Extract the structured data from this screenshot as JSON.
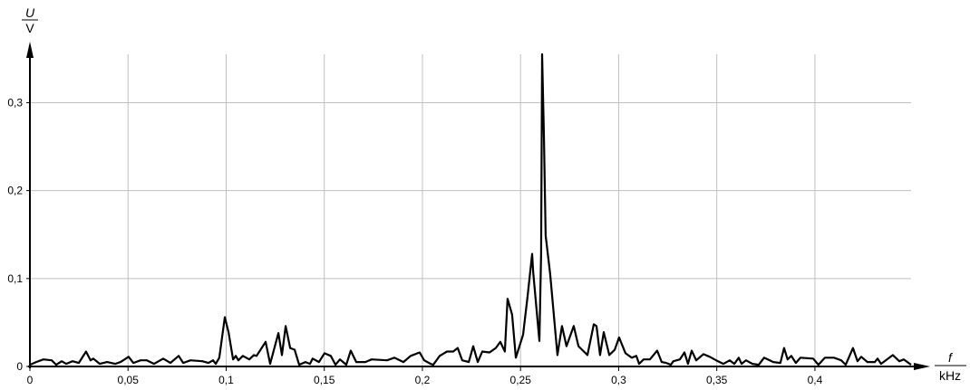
{
  "chart_data": {
    "type": "line",
    "title": "",
    "ylabel": {
      "symbol": "U",
      "unit": "V"
    },
    "xlabel": {
      "symbol": "f",
      "unit": "kHz"
    },
    "xlim": [
      0,
      0.449
    ],
    "ylim": [
      0,
      0.355
    ],
    "grid": true,
    "line_color": "#000000",
    "grid_color": "#c0c0c0",
    "x_ticks": [
      0,
      0.05,
      0.1,
      0.15,
      0.2,
      0.25,
      0.3,
      0.35,
      0.4
    ],
    "x_tick_labels": [
      "0",
      "0,05",
      "0,1",
      "0,15",
      "0,2",
      "0,25",
      "0,3",
      "0,35",
      "0,4"
    ],
    "y_ticks": [
      0,
      0.1,
      0.2,
      0.3
    ],
    "y_tick_labels": [
      "0",
      "0,1",
      "0,2",
      "0,3"
    ],
    "series": [
      {
        "x": [
          0,
          0.0032,
          0.0069,
          0.0111,
          0.0134,
          0.0162,
          0.0185,
          0.0217,
          0.0249,
          0.0286,
          0.0309,
          0.0323,
          0.0356,
          0.0393,
          0.0434,
          0.0462,
          0.0503,
          0.0527,
          0.0564,
          0.0596,
          0.0633,
          0.0679,
          0.0716,
          0.0758,
          0.0781,
          0.0818,
          0.0878,
          0.091,
          0.0933,
          0.0947,
          0.0965,
          0.0993,
          0.1012,
          0.1035,
          0.1049,
          0.1062,
          0.1085,
          0.1118,
          0.1141,
          0.1155,
          0.1201,
          0.1224,
          0.1266,
          0.1284,
          0.1303,
          0.1326,
          0.1349,
          0.1372,
          0.1404,
          0.1427,
          0.1441,
          0.1473,
          0.1501,
          0.1533,
          0.1557,
          0.158,
          0.1612,
          0.1635,
          0.1663,
          0.1709,
          0.1741,
          0.182,
          0.1857,
          0.1903,
          0.194,
          0.1986,
          0.2009,
          0.2042,
          0.2055,
          0.2088,
          0.2125,
          0.2157,
          0.218,
          0.2203,
          0.2236,
          0.2259,
          0.2282,
          0.2305,
          0.2342,
          0.2374,
          0.2397,
          0.242,
          0.2434,
          0.2457,
          0.2476,
          0.2513,
          0.2536,
          0.2559,
          0.2564,
          0.2596,
          0.2605,
          0.261,
          0.2619,
          0.2628,
          0.2651,
          0.2688,
          0.2711,
          0.2734,
          0.2771,
          0.2795,
          0.2841,
          0.2873,
          0.2887,
          0.2905,
          0.2924,
          0.2952,
          0.298,
          0.3002,
          0.3035,
          0.3067,
          0.309,
          0.3104,
          0.3127,
          0.3159,
          0.3196,
          0.3219,
          0.3243,
          0.3266,
          0.3279,
          0.3312,
          0.3335,
          0.3353,
          0.3372,
          0.3395,
          0.3432,
          0.3464,
          0.3497,
          0.3534,
          0.3566,
          0.3589,
          0.3612,
          0.3626,
          0.3649,
          0.3681,
          0.3714,
          0.3741,
          0.3788,
          0.3824,
          0.3843,
          0.3861,
          0.388,
          0.3903,
          0.3926,
          0.3991,
          0.4018,
          0.4051,
          0.4097,
          0.4134,
          0.4157,
          0.4194,
          0.4217,
          0.4236,
          0.4268,
          0.4305,
          0.4319,
          0.4337,
          0.4397,
          0.443,
          0.4453,
          0.449
        ],
        "y": [
          0.002,
          0.005,
          0.008,
          0.007,
          0.002,
          0.006,
          0.003,
          0.006,
          0.004,
          0.017,
          0.007,
          0.009,
          0.003,
          0.005,
          0.003,
          0.005,
          0.011,
          0.004,
          0.007,
          0.007,
          0.003,
          0.009,
          0.004,
          0.012,
          0.004,
          0.007,
          0.006,
          0.004,
          0.007,
          0.003,
          0.01,
          0.056,
          0.039,
          0.008,
          0.012,
          0.007,
          0.012,
          0.008,
          0.013,
          0.012,
          0.028,
          0.003,
          0.038,
          0.013,
          0.046,
          0.021,
          0.019,
          0.002,
          0.005,
          0.003,
          0.009,
          0.005,
          0.015,
          0.012,
          0.002,
          0.008,
          0.002,
          0.018,
          0.005,
          0.005,
          0.008,
          0.007,
          0.01,
          0.005,
          0.012,
          0.016,
          0.007,
          0.003,
          0.002,
          0.012,
          0.017,
          0.017,
          0.021,
          0.007,
          0.005,
          0.023,
          0.005,
          0.017,
          0.016,
          0.021,
          0.028,
          0.017,
          0.077,
          0.059,
          0.01,
          0.036,
          0.08,
          0.128,
          0.108,
          0.029,
          0.128,
          0.355,
          0.262,
          0.149,
          0.105,
          0.013,
          0.046,
          0.023,
          0.046,
          0.023,
          0.013,
          0.048,
          0.046,
          0.013,
          0.039,
          0.013,
          0.019,
          0.033,
          0.015,
          0.01,
          0.012,
          0.003,
          0.008,
          0.008,
          0.018,
          0.005,
          0.004,
          0.002,
          0.006,
          0.008,
          0.016,
          0.003,
          0.018,
          0.007,
          0.014,
          0.011,
          0.007,
          0.003,
          0.007,
          0.003,
          0.01,
          0.003,
          0.007,
          0.003,
          0.002,
          0.01,
          0.005,
          0.004,
          0.021,
          0.008,
          0.012,
          0.004,
          0.01,
          0.009,
          0.002,
          0.01,
          0.01,
          0.007,
          0.002,
          0.021,
          0.006,
          0.011,
          0.005,
          0.005,
          0.009,
          0.003,
          0.013,
          0.006,
          0.008,
          0.002
        ]
      }
    ]
  }
}
